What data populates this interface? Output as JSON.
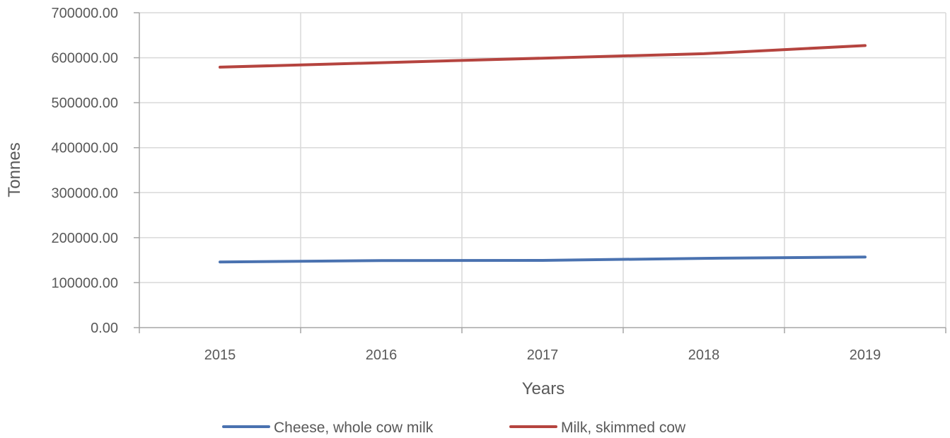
{
  "chart_data": {
    "type": "line",
    "title": "",
    "xlabel": "Years",
    "ylabel": "Tonnes",
    "categories": [
      "2015",
      "2016",
      "2017",
      "2018",
      "2019"
    ],
    "ylim": [
      0,
      700000
    ],
    "yticks": [
      0,
      100000,
      200000,
      300000,
      400000,
      500000,
      600000,
      700000
    ],
    "ytick_labels": [
      "0.00",
      "100000.00",
      "200000.00",
      "300000.00",
      "400000.00",
      "500000.00",
      "600000.00",
      "700000.00"
    ],
    "grid": true,
    "legend_position": "bottom",
    "series": [
      {
        "name": "Cheese, whole cow milk",
        "color": "#4a72b0",
        "values": [
          146000,
          149000,
          149500,
          154000,
          157000
        ]
      },
      {
        "name": "Milk, skimmed cow",
        "color": "#b5443f",
        "values": [
          579000,
          589000,
          599000,
          609000,
          627000
        ]
      }
    ]
  }
}
